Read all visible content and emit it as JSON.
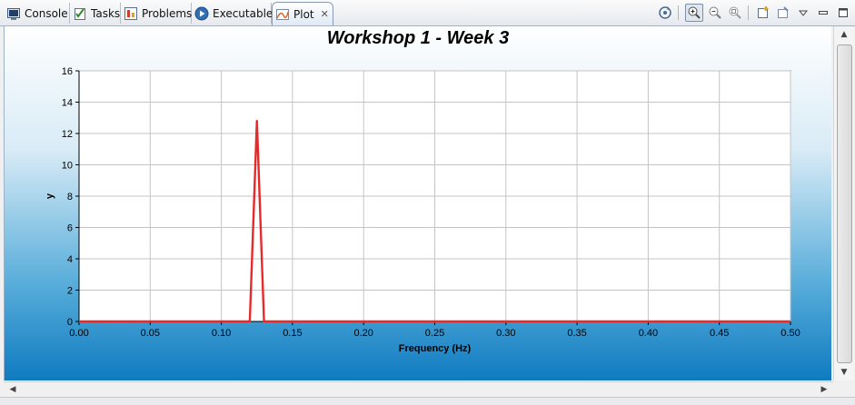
{
  "tabs": [
    {
      "label": "Console",
      "icon": "console-icon"
    },
    {
      "label": "Tasks",
      "icon": "tasks-icon"
    },
    {
      "label": "Problems",
      "icon": "problems-icon"
    },
    {
      "label": "Executables",
      "icon": "executables-icon"
    },
    {
      "label": "Plot",
      "icon": "plot-icon",
      "active": true
    }
  ],
  "toolbar": [
    "refresh-icon",
    "zoom-in-icon",
    "zoom-out-icon",
    "zoom-fit-icon",
    "new-view-icon",
    "pin-view-icon",
    "view-menu-icon",
    "minimize-icon",
    "maximize-icon"
  ],
  "plot": {
    "title": "Workshop 1 - Week 3"
  },
  "chart_data": {
    "type": "line",
    "title": "Workshop 1 - Week 3",
    "xlabel": "Frequency (Hz)",
    "ylabel": "y",
    "xlim": [
      0,
      0.5
    ],
    "ylim": [
      0,
      16
    ],
    "xticks": [
      "0.00",
      "0.05",
      "0.10",
      "0.15",
      "0.20",
      "0.25",
      "0.30",
      "0.35",
      "0.40",
      "0.45",
      "0.50"
    ],
    "yticks": [
      "0",
      "2",
      "4",
      "6",
      "8",
      "10",
      "12",
      "14",
      "16"
    ],
    "grid": true,
    "series": [
      {
        "color": "#e8292a",
        "x": [
          0,
          0.12,
          0.125,
          0.13,
          0.5
        ],
        "y": [
          0,
          0,
          12.8,
          0,
          0
        ]
      }
    ]
  }
}
